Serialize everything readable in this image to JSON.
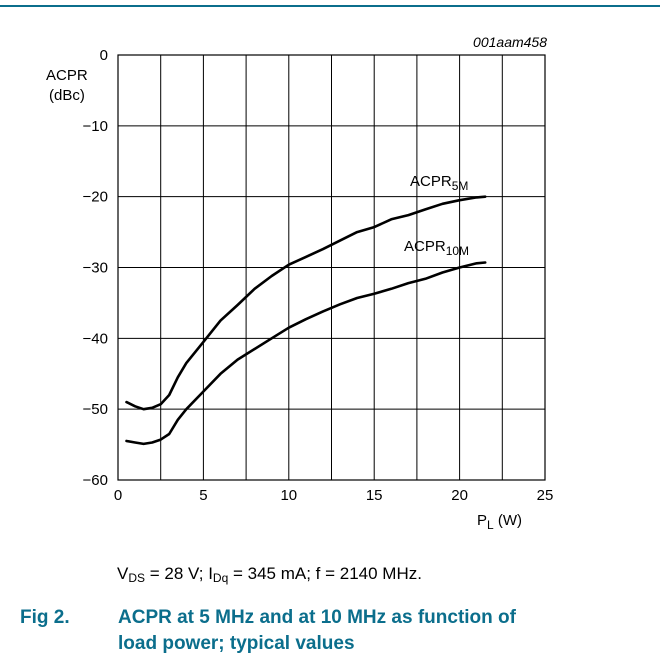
{
  "header": {
    "rule_color": "#0b6e8c"
  },
  "chart_code": "001aam458",
  "chart_data": {
    "type": "line",
    "xlabel_main": "P",
    "xlabel_sub": "L",
    "xlabel_unit": " (W)",
    "ylabel_line1": "ACPR",
    "ylabel_line2": "(dBc)",
    "xlim": [
      0,
      25
    ],
    "ylim": [
      -60,
      0
    ],
    "x_ticks": [
      0,
      5,
      10,
      15,
      20,
      25
    ],
    "y_ticks": [
      0,
      -10,
      -20,
      -30,
      -40,
      -50,
      -60
    ],
    "x_tick_labels": [
      "0",
      "5",
      "10",
      "15",
      "20",
      "25"
    ],
    "y_tick_labels": [
      "0",
      "−10",
      "−20",
      "−30",
      "−40",
      "−50",
      "−60"
    ],
    "grid": true,
    "series": [
      {
        "name": "ACPR",
        "name_sub": "5M",
        "values": [
          [
            0.5,
            -49.0
          ],
          [
            1.0,
            -49.6
          ],
          [
            1.5,
            -50.0
          ],
          [
            2.0,
            -49.8
          ],
          [
            2.5,
            -49.3
          ],
          [
            3.0,
            -48.0
          ],
          [
            3.5,
            -45.5
          ],
          [
            4.0,
            -43.5
          ],
          [
            5.0,
            -40.5
          ],
          [
            6.0,
            -37.5
          ],
          [
            7.0,
            -35.3
          ],
          [
            8.0,
            -33.0
          ],
          [
            9.0,
            -31.2
          ],
          [
            10.0,
            -29.6
          ],
          [
            11.0,
            -28.5
          ],
          [
            12.0,
            -27.4
          ],
          [
            13.0,
            -26.2
          ],
          [
            14.0,
            -25.0
          ],
          [
            15.0,
            -24.3
          ],
          [
            16.0,
            -23.2
          ],
          [
            17.0,
            -22.6
          ],
          [
            18.0,
            -21.8
          ],
          [
            19.0,
            -21.0
          ],
          [
            20.0,
            -20.5
          ],
          [
            21.0,
            -20.1
          ],
          [
            21.5,
            -20.0
          ]
        ]
      },
      {
        "name": "ACPR",
        "name_sub": "10M",
        "values": [
          [
            0.5,
            -54.5
          ],
          [
            1.0,
            -54.7
          ],
          [
            1.5,
            -54.9
          ],
          [
            2.0,
            -54.7
          ],
          [
            2.5,
            -54.3
          ],
          [
            3.0,
            -53.5
          ],
          [
            3.5,
            -51.5
          ],
          [
            4.0,
            -50.0
          ],
          [
            5.0,
            -47.5
          ],
          [
            6.0,
            -45.0
          ],
          [
            7.0,
            -43.0
          ],
          [
            8.0,
            -41.5
          ],
          [
            9.0,
            -40.0
          ],
          [
            10.0,
            -38.5
          ],
          [
            11.0,
            -37.3
          ],
          [
            12.0,
            -36.2
          ],
          [
            13.0,
            -35.2
          ],
          [
            14.0,
            -34.3
          ],
          [
            15.0,
            -33.7
          ],
          [
            16.0,
            -33.0
          ],
          [
            17.0,
            -32.2
          ],
          [
            18.0,
            -31.6
          ],
          [
            19.0,
            -30.7
          ],
          [
            20.0,
            -30.0
          ],
          [
            21.0,
            -29.4
          ],
          [
            21.5,
            -29.3
          ]
        ]
      }
    ]
  },
  "conditions": {
    "vds_main": "V",
    "vds_sub": "DS",
    "vds_rest": " = 28 V; ",
    "idq_main": "I",
    "idq_sub": "Dq",
    "idq_rest": " = 345 mA; f = 2140 MHz."
  },
  "figure": {
    "number": "Fig 2.",
    "caption": "ACPR at 5 MHz and at 10 MHz as function of load power; typical values",
    "color": "#0b6e8c"
  }
}
